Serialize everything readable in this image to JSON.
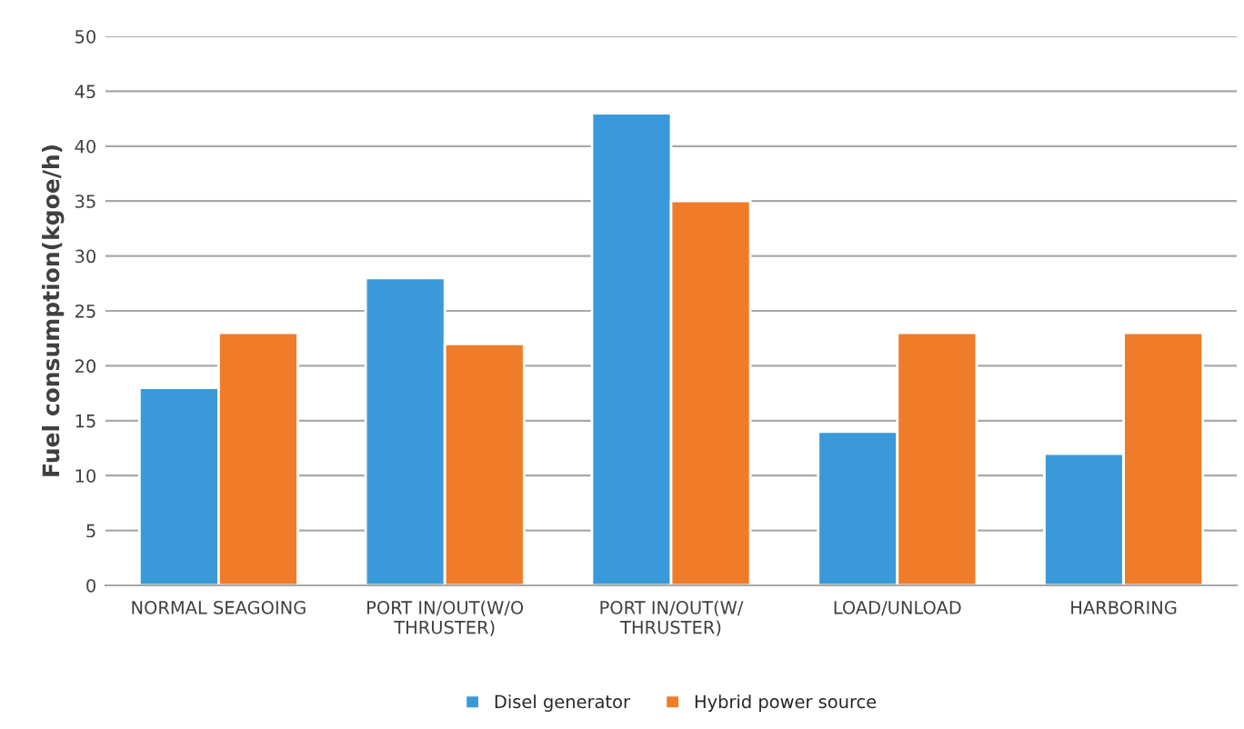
{
  "chart_data": {
    "type": "bar",
    "ylabel": "Fuel consumption(kgoe/h)",
    "categories": [
      "NORMAL SEAGOING",
      "PORT IN/OUT(W/O\nTHRUSTER)",
      "PORT IN/OUT(W/\nTHRUSTER)",
      "LOAD/UNLOAD",
      "HARBORING"
    ],
    "series": [
      {
        "name": "Disel generator",
        "color": "#3a9ad9",
        "values": [
          18,
          28,
          43,
          14,
          12
        ]
      },
      {
        "name": "Hybrid power source",
        "color": "#f07c2a",
        "values": [
          23,
          22,
          35,
          23,
          23
        ]
      }
    ],
    "ylim": [
      0,
      50
    ],
    "yticks": [
      0,
      5,
      10,
      15,
      20,
      25,
      30,
      35,
      40,
      45,
      50
    ],
    "grid": "y",
    "legend": "bottom"
  }
}
